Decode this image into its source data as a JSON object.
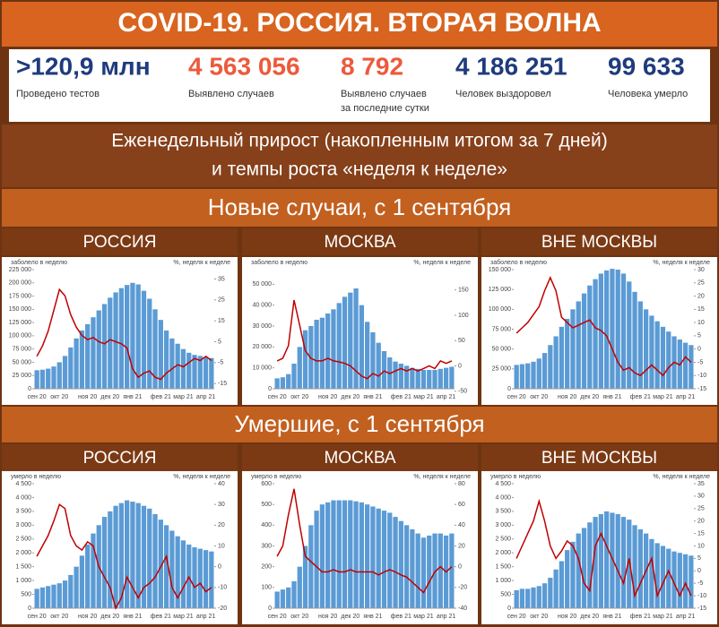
{
  "title": "COVID-19. РОССИЯ. ВТОРАЯ ВОЛНА",
  "stats": [
    {
      "value": ">120,9 млн",
      "label": "Проведено тестов",
      "color": "#1f3b7d"
    },
    {
      "value": "4 563 056",
      "label": "Выявлено случаев",
      "color": "#ec5a3c"
    },
    {
      "value": "8 792",
      "label": [
        "Выявлено случаев",
        "за последние сутки"
      ],
      "color": "#ec5a3c"
    },
    {
      "value": "4 186 251",
      "label": "Человек выздоровел",
      "color": "#1f3b7d"
    },
    {
      "value": "99 633",
      "label": "Человека умерло",
      "color": "#1f3b7d"
    }
  ],
  "subtitle": [
    "Еженедельный прирост (накопленным итогом за 7 дней)",
    "и темпы роста «неделя к неделе»"
  ],
  "sections": [
    "Новые случаи, с 1 сентября",
    "Умершие, с 1 сентября"
  ],
  "chart_data": [
    {
      "type": "combo",
      "title": "РОССИЯ",
      "y_label": "заболело в неделю",
      "y2_label": "%, неделя к неделе",
      "categories": [
        "сен 20",
        null,
        null,
        null,
        "окт 20",
        null,
        null,
        null,
        null,
        "ноя 20",
        null,
        null,
        null,
        "дек 20",
        null,
        null,
        null,
        "янв 21",
        null,
        null,
        null,
        null,
        "фев 21",
        null,
        null,
        null,
        "мар 21",
        null,
        null,
        null,
        "апр 21",
        null
      ],
      "ylim": [
        0,
        225000
      ],
      "yticks": [
        0,
        {
          "value": 25000,
          "label": "25 000"
        },
        {
          "value": 50000,
          "label": "50 000"
        },
        {
          "value": 75000,
          "label": "75 000"
        },
        {
          "value": 100000,
          "label": "100 000"
        },
        {
          "value": 125000,
          "label": "125 000"
        },
        {
          "value": 150000,
          "label": "150 000"
        },
        {
          "value": 175000,
          "label": "175 000"
        },
        {
          "value": 200000,
          "label": "200 000"
        },
        {
          "value": 225000,
          "label": "225 000"
        }
      ],
      "y2lim": [
        -17.5,
        39.5
      ],
      "y2ticks": [
        -15,
        -5,
        5,
        15,
        25,
        35
      ],
      "series": [
        {
          "color": "#5b9bd5",
          "values": [
            35000,
            36000,
            38000,
            42000,
            50000,
            62000,
            78000,
            95000,
            110000,
            122000,
            135000,
            148000,
            160000,
            172000,
            182000,
            190000,
            196000,
            200000,
            197000,
            185000,
            170000,
            150000,
            130000,
            110000,
            95000,
            85000,
            75000,
            68000,
            64000,
            62000,
            60000,
            58000
          ]
        },
        {
          "color": "#c00000",
          "axis": "y2",
          "values": [
            -2,
            3,
            10,
            20,
            30,
            27,
            18,
            12,
            8,
            6,
            7,
            5,
            4,
            6,
            5,
            4,
            2,
            -8,
            -12,
            -10,
            -9,
            -12,
            -13,
            -10,
            -8,
            -6,
            -7,
            -5,
            -3,
            -4,
            -2,
            -4
          ]
        }
      ]
    },
    {
      "type": "combo",
      "title": "МОСКВА",
      "y_label": "заболело в неделю",
      "y2_label": "%, неделя к неделе",
      "categories": [
        "сен 20",
        null,
        null,
        null,
        "окт 20",
        null,
        null,
        null,
        null,
        "ноя 20",
        null,
        null,
        null,
        "дек 20",
        null,
        null,
        null,
        "янв 21",
        null,
        null,
        null,
        null,
        "фев 21",
        null,
        null,
        null,
        "мар 21",
        null,
        null,
        null,
        "апр 21",
        null
      ],
      "ylim": [
        0,
        57000
      ],
      "yticks": [
        0,
        {
          "value": 10000,
          "label": "10 000"
        },
        {
          "value": 20000,
          "label": "20 000"
        },
        {
          "value": 30000,
          "label": "30 000"
        },
        {
          "value": 40000,
          "label": "40 000"
        },
        {
          "value": 50000,
          "label": "50 000"
        }
      ],
      "y2lim": [
        -45,
        190
      ],
      "y2ticks": [
        -50,
        0,
        50,
        100,
        150
      ],
      "series": [
        {
          "color": "#5b9bd5",
          "values": [
            5000,
            5500,
            7000,
            12000,
            20000,
            28000,
            30000,
            33000,
            34000,
            36000,
            38000,
            41000,
            44000,
            46000,
            48000,
            40000,
            32000,
            27000,
            22000,
            18000,
            15000,
            13000,
            12000,
            11000,
            10000,
            9500,
            9000,
            9000,
            9000,
            9500,
            10000,
            10500
          ]
        },
        {
          "color": "#c00000",
          "axis": "y2",
          "values": [
            10,
            15,
            40,
            130,
            80,
            30,
            15,
            10,
            10,
            15,
            10,
            8,
            5,
            0,
            -10,
            -20,
            -25,
            -15,
            -20,
            -10,
            -15,
            -10,
            -5,
            -10,
            -5,
            -10,
            -5,
            0,
            -5,
            10,
            5,
            10
          ]
        }
      ]
    },
    {
      "type": "combo",
      "title": "ВНЕ МОСКВЫ",
      "y_label": "заболело в неделю",
      "y2_label": "%, неделя к неделе",
      "categories": [
        "сен 20",
        null,
        null,
        null,
        "окт 20",
        null,
        null,
        null,
        null,
        "ноя 20",
        null,
        null,
        null,
        "дек 20",
        null,
        null,
        null,
        "янв 21",
        null,
        null,
        null,
        null,
        "фев 21",
        null,
        null,
        null,
        "мар 21",
        null,
        null,
        null,
        "апр 21",
        null
      ],
      "ylim": [
        0,
        150000
      ],
      "yticks": [
        0,
        {
          "value": 25000,
          "label": "25 000"
        },
        {
          "value": 50000,
          "label": "50 000"
        },
        {
          "value": 75000,
          "label": "75 000"
        },
        {
          "value": 100000,
          "label": "100 000"
        },
        {
          "value": 125000,
          "label": "125 000"
        },
        {
          "value": 150000,
          "label": "150 000"
        }
      ],
      "y2lim": [
        -15,
        30
      ],
      "y2ticks": [
        -15,
        -10,
        -5,
        0,
        5,
        10,
        15,
        20,
        25,
        30
      ],
      "series": [
        {
          "color": "#5b9bd5",
          "values": [
            30000,
            31000,
            32000,
            34000,
            38000,
            45000,
            55000,
            66000,
            78000,
            88000,
            100000,
            110000,
            120000,
            130000,
            138000,
            145000,
            149000,
            151000,
            150000,
            145000,
            135000,
            122000,
            110000,
            100000,
            92000,
            85000,
            78000,
            72000,
            66000,
            62000,
            58000,
            55000
          ]
        },
        {
          "color": "#c00000",
          "axis": "y2",
          "values": [
            6,
            8,
            10,
            13,
            16,
            22,
            27,
            22,
            12,
            10,
            8,
            9,
            10,
            11,
            8,
            7,
            5,
            0,
            -5,
            -8,
            -7,
            -9,
            -10,
            -8,
            -6,
            -8,
            -10,
            -7,
            -5,
            -6,
            -3,
            -5
          ]
        }
      ]
    },
    {
      "type": "combo",
      "title": "РОССИЯ",
      "y_label": "умерло в неделю",
      "y2_label": "%, неделя к неделе",
      "categories": [
        "сен 20",
        null,
        null,
        null,
        "окт 20",
        null,
        null,
        null,
        null,
        "ноя 20",
        null,
        null,
        null,
        "дек 20",
        null,
        null,
        null,
        "янв 21",
        null,
        null,
        null,
        null,
        "фев 21",
        null,
        null,
        null,
        "мар 21",
        null,
        null,
        null,
        "апр 21",
        null
      ],
      "ylim": [
        0,
        4500
      ],
      "yticks": [
        0,
        500,
        {
          "value": 1000,
          "label": "1 000"
        },
        {
          "value": 1500,
          "label": "1 500"
        },
        {
          "value": 2000,
          "label": "2 000"
        },
        {
          "value": 2500,
          "label": "2 500"
        },
        {
          "value": 3000,
          "label": "3 000"
        },
        {
          "value": 3500,
          "label": "3 500"
        },
        {
          "value": 4000,
          "label": "4 000"
        },
        {
          "value": 4500,
          "label": "4 500"
        }
      ],
      "y2lim": [
        -20,
        40
      ],
      "y2ticks": [
        -20,
        -10,
        0,
        10,
        20,
        30,
        40
      ],
      "series": [
        {
          "color": "#5b9bd5",
          "values": [
            700,
            750,
            800,
            850,
            900,
            1000,
            1200,
            1500,
            1900,
            2300,
            2700,
            3000,
            3300,
            3500,
            3700,
            3800,
            3900,
            3850,
            3800,
            3700,
            3600,
            3400,
            3200,
            3000,
            2800,
            2600,
            2450,
            2300,
            2200,
            2150,
            2100,
            2050
          ]
        },
        {
          "color": "#c00000",
          "axis": "y2",
          "values": [
            5,
            10,
            15,
            22,
            30,
            28,
            15,
            10,
            8,
            12,
            10,
            0,
            -5,
            -10,
            -20,
            -15,
            -5,
            -10,
            -15,
            -10,
            -8,
            -5,
            0,
            5,
            -10,
            -15,
            -10,
            -5,
            -10,
            -8,
            -12,
            -10
          ]
        }
      ]
    },
    {
      "type": "combo",
      "title": "МОСКВА",
      "y_label": "умерло в неделю",
      "y2_label": "%, неделя к неделе",
      "categories": [
        "сен 20",
        null,
        null,
        null,
        "окт 20",
        null,
        null,
        null,
        null,
        "ноя 20",
        null,
        null,
        null,
        "дек 20",
        null,
        null,
        null,
        "янв 21",
        null,
        null,
        null,
        null,
        "фев 21",
        null,
        null,
        null,
        "мар 21",
        null,
        null,
        null,
        "апр 21",
        null
      ],
      "ylim": [
        0,
        600
      ],
      "yticks": [
        0,
        100,
        200,
        300,
        400,
        500,
        600
      ],
      "y2lim": [
        -40,
        80
      ],
      "y2ticks": [
        -40,
        -20,
        0,
        20,
        40,
        60,
        80
      ],
      "series": [
        {
          "color": "#5b9bd5",
          "values": [
            80,
            90,
            100,
            130,
            200,
            300,
            400,
            470,
            500,
            510,
            520,
            520,
            520,
            520,
            515,
            510,
            500,
            490,
            480,
            470,
            460,
            440,
            420,
            400,
            380,
            360,
            340,
            350,
            360,
            360,
            350,
            360
          ]
        },
        {
          "color": "#c00000",
          "axis": "y2",
          "values": [
            10,
            20,
            50,
            75,
            40,
            10,
            5,
            0,
            -5,
            -5,
            -3,
            -5,
            -5,
            -3,
            -5,
            -5,
            -5,
            -5,
            -8,
            -5,
            -3,
            -5,
            -8,
            -10,
            -15,
            -20,
            -25,
            -15,
            -5,
            0,
            -5,
            0
          ]
        }
      ]
    },
    {
      "type": "combo",
      "title": "ВНЕ МОСКВЫ",
      "y_label": "умерло в неделю",
      "y2_label": "%, неделя к неделе",
      "categories": [
        "сен 20",
        null,
        null,
        null,
        "окт 20",
        null,
        null,
        null,
        null,
        "ноя 20",
        null,
        null,
        null,
        "дек 20",
        null,
        null,
        null,
        "янв 21",
        null,
        null,
        null,
        null,
        "фев 21",
        null,
        null,
        null,
        "мар 21",
        null,
        null,
        null,
        "апр 21",
        null
      ],
      "ylim": [
        0,
        4500
      ],
      "yticks": [
        0,
        500,
        {
          "value": 1000,
          "label": "1 000"
        },
        {
          "value": 1500,
          "label": "1 500"
        },
        {
          "value": 2000,
          "label": "2 000"
        },
        {
          "value": 2500,
          "label": "2 500"
        },
        {
          "value": 3000,
          "label": "3 000"
        },
        {
          "value": 3500,
          "label": "3 500"
        },
        {
          "value": 4000,
          "label": "4 000"
        },
        {
          "value": 4500,
          "label": "4 500"
        }
      ],
      "y2lim": [
        -15,
        35
      ],
      "y2ticks": [
        -15,
        -10,
        -5,
        0,
        5,
        10,
        15,
        20,
        25,
        30,
        35
      ],
      "series": [
        {
          "color": "#5b9bd5",
          "values": [
            650,
            700,
            700,
            750,
            800,
            900,
            1100,
            1400,
            1700,
            2100,
            2400,
            2700,
            2900,
            3100,
            3300,
            3400,
            3500,
            3450,
            3400,
            3300,
            3200,
            3000,
            2850,
            2700,
            2500,
            2350,
            2250,
            2150,
            2050,
            2000,
            1950,
            1900
          ]
        },
        {
          "color": "#c00000",
          "axis": "y2",
          "values": [
            5,
            10,
            15,
            20,
            28,
            20,
            10,
            5,
            8,
            12,
            10,
            5,
            -5,
            -8,
            10,
            15,
            10,
            5,
            0,
            -5,
            5,
            -10,
            -5,
            0,
            5,
            -10,
            -5,
            0,
            -5,
            -10,
            -5,
            -10
          ]
        }
      ]
    }
  ]
}
